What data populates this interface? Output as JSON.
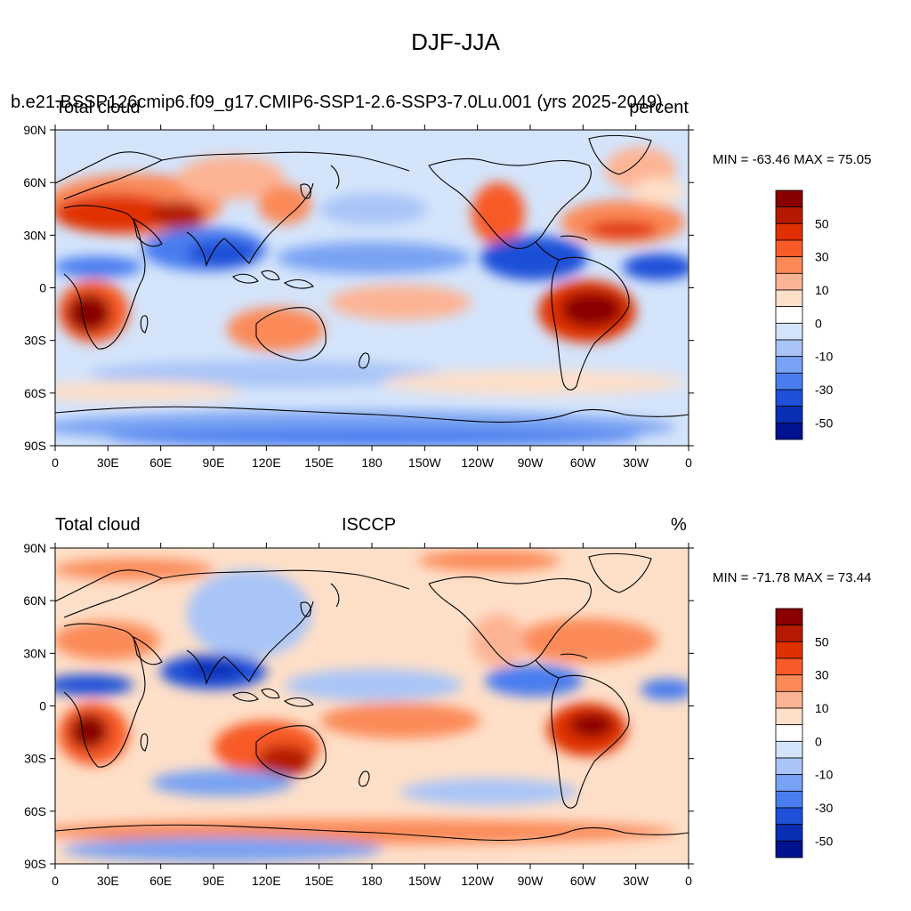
{
  "title": "DJF-JJA",
  "panels": [
    {
      "run_label": "b.e21.BSSP126cmip6.f09_g17.CMIP6-SSP1-2.6-SSP3-7.0Lu.001 (yrs 2025-2049)",
      "left_label": "Total cloud",
      "right_label": "percent",
      "min_max": "MIN = -63.46 MAX =  75.05"
    },
    {
      "left_label": "Total cloud",
      "center_label": "ISCCP",
      "right_label": "%",
      "min_max": "MIN = -71.78 MAX =  73.44"
    }
  ],
  "lat_ticks": [
    "90N",
    "60N",
    "30N",
    "0",
    "30S",
    "60S",
    "90S"
  ],
  "lon_ticks": [
    "0",
    "30E",
    "60E",
    "90E",
    "120E",
    "150E",
    "180",
    "150W",
    "120W",
    "90W",
    "60W",
    "30W",
    "0"
  ],
  "colorbar": {
    "labels": [
      "50",
      "30",
      "10",
      "0",
      "-10",
      "-30",
      "-50"
    ],
    "colors": [
      "#8a0000",
      "#b51a00",
      "#e03000",
      "#f85a28",
      "#fb8a58",
      "#fdb494",
      "#fedfc8",
      "#ffffff",
      "#d4e4fb",
      "#a9c5f7",
      "#78a2f3",
      "#4a7def",
      "#1e50d8",
      "#0a2fb5",
      "#00128f"
    ]
  }
}
